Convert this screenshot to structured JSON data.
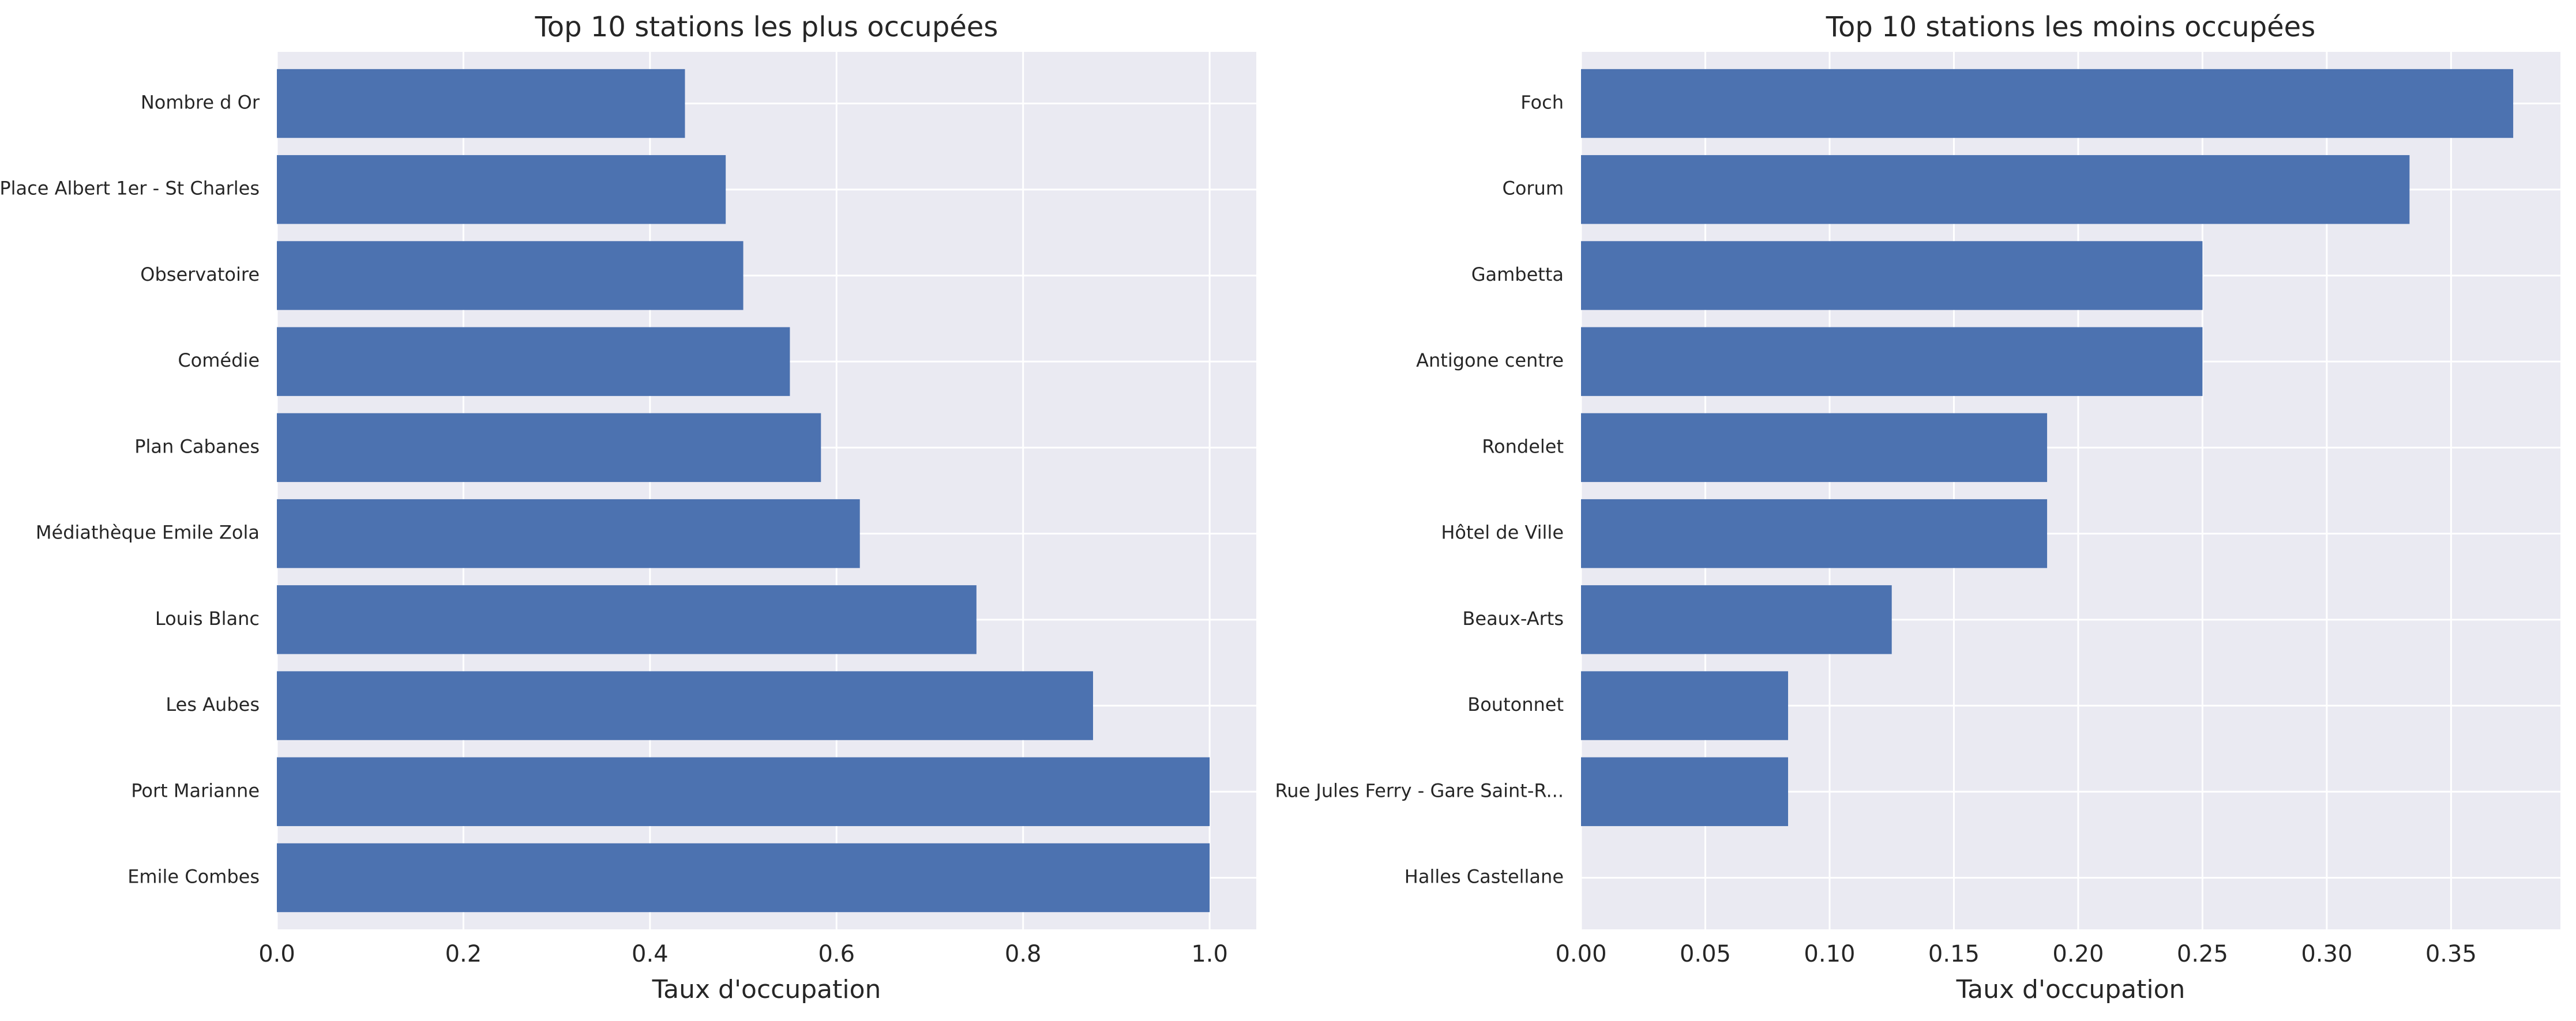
{
  "colors": {
    "bar": "#4c72b0",
    "panel_background": "#eaeaf2",
    "grid": "#ffffff",
    "text": "#262626"
  },
  "chart_data": [
    {
      "type": "bar",
      "orientation": "horizontal",
      "title": "Top 10 stations les plus occupées",
      "xlabel": "Taux d'occupation",
      "ylabel": "",
      "categories": [
        "Nombre d Or",
        "Place Albert 1er - St Charles",
        "Observatoire",
        "Comédie",
        "Plan Cabanes",
        "Médiathèque Emile Zola",
        "Louis Blanc",
        "Les Aubes",
        "Port Marianne",
        "Emile Combes"
      ],
      "values": [
        0.4375,
        0.4812,
        0.5,
        0.55,
        0.5833,
        0.625,
        0.75,
        0.875,
        1.0,
        1.0
      ],
      "xlim": [
        0,
        1.05
      ],
      "xticks": [
        0.0,
        0.2,
        0.4,
        0.6,
        0.8,
        1.0
      ],
      "xtick_labels": [
        "0.0",
        "0.2",
        "0.4",
        "0.6",
        "0.8",
        "1.0"
      ],
      "grid": true
    },
    {
      "type": "bar",
      "orientation": "horizontal",
      "title": "Top 10 stations les moins occupées",
      "xlabel": "Taux d'occupation",
      "ylabel": "",
      "categories": [
        "Foch",
        "Corum",
        "Gambetta",
        "Antigone centre",
        "Rondelet",
        "Hôtel de Ville",
        "Beaux-Arts",
        "Boutonnet",
        "Rue Jules Ferry - Gare Saint-R...",
        "Halles Castellane"
      ],
      "values": [
        0.375,
        0.3333,
        0.25,
        0.25,
        0.1875,
        0.1875,
        0.125,
        0.0833,
        0.0833,
        0.0
      ],
      "xlim": [
        0,
        0.394
      ],
      "xticks": [
        0.0,
        0.05,
        0.1,
        0.15,
        0.2,
        0.25,
        0.3,
        0.35
      ],
      "xtick_labels": [
        "0.00",
        "0.05",
        "0.10",
        "0.15",
        "0.20",
        "0.25",
        "0.30",
        "0.35"
      ],
      "grid": true
    }
  ]
}
